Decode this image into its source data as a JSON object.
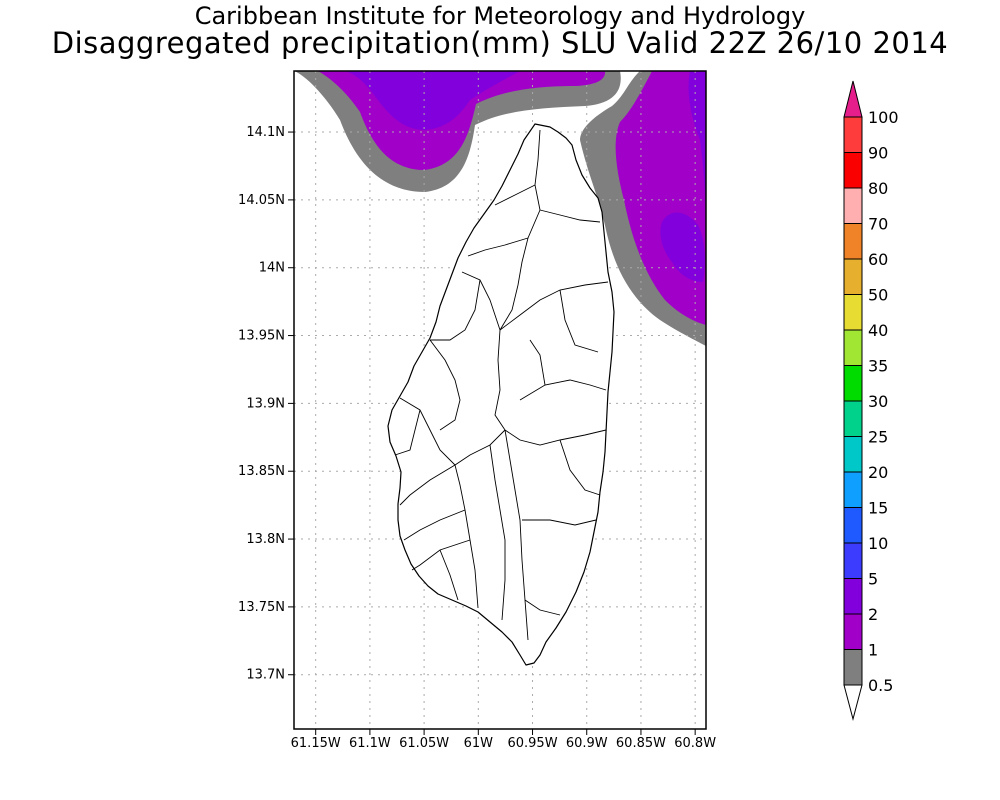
{
  "header": {
    "line1": "Caribbean Institute for Meteorology and Hydrology",
    "line2": "Disaggregated precipitation(mm) SLU Valid 22Z 26/10 2014"
  },
  "map": {
    "region": "Saint Lucia",
    "lon_range": [
      -61.17,
      -60.79
    ],
    "lat_range": [
      13.66,
      14.145
    ],
    "grid": true,
    "lat_ticks": [
      {
        "value": 14.1,
        "label": "14.1N"
      },
      {
        "value": 14.05,
        "label": "14.05N"
      },
      {
        "value": 14.0,
        "label": "14N"
      },
      {
        "value": 13.95,
        "label": "13.95N"
      },
      {
        "value": 13.9,
        "label": "13.9N"
      },
      {
        "value": 13.85,
        "label": "13.85N"
      },
      {
        "value": 13.8,
        "label": "13.8N"
      },
      {
        "value": 13.75,
        "label": "13.75N"
      },
      {
        "value": 13.7,
        "label": "13.7N"
      }
    ],
    "lon_ticks": [
      {
        "value": -61.15,
        "label": "61.15W"
      },
      {
        "value": -61.1,
        "label": "61.1W"
      },
      {
        "value": -61.05,
        "label": "61.05W"
      },
      {
        "value": -61.0,
        "label": "61W"
      },
      {
        "value": -60.95,
        "label": "60.95W"
      },
      {
        "value": -60.9,
        "label": "60.9W"
      },
      {
        "value": -60.85,
        "label": "60.85W"
      },
      {
        "value": -60.8,
        "label": "60.8W"
      }
    ]
  },
  "colorbar": {
    "labels": [
      "0.5",
      "1",
      "2",
      "5",
      "10",
      "15",
      "20",
      "25",
      "30",
      "35",
      "40",
      "50",
      "60",
      "70",
      "80",
      "90",
      "100"
    ],
    "colors": [
      "#ffffff",
      "#7f7f7f",
      "#a000c8",
      "#8200dc",
      "#3c3cff",
      "#1e5aff",
      "#0fa0ff",
      "#00c8c8",
      "#00d28c",
      "#00dc00",
      "#a0e632",
      "#e6dc32",
      "#e6af2d",
      "#f08228",
      "#ffafaf",
      "#fa0000",
      "#ff3c3c",
      "#e61e8c"
    ]
  },
  "precip_areas": {
    "light_color": "#7f7f7f",
    "medium_color": "#a000c8",
    "heavy_color": "#8200dc"
  }
}
